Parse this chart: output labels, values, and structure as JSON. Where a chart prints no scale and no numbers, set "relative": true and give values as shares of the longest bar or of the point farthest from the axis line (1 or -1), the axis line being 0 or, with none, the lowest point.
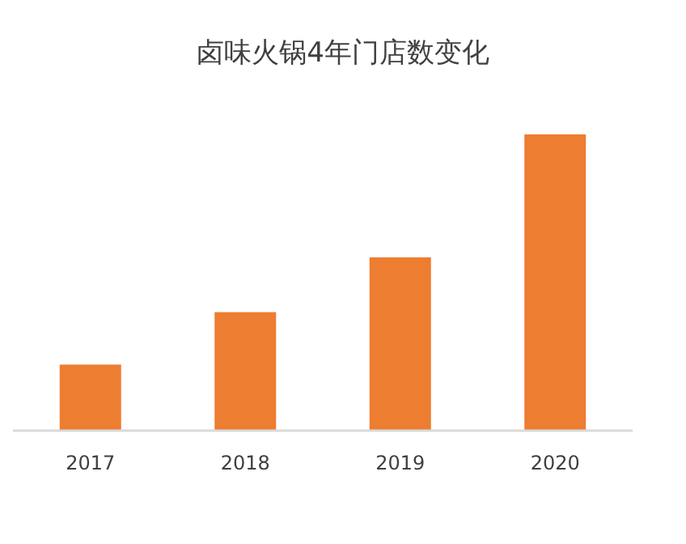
{
  "chart_data": {
    "type": "bar",
    "title": "卤味火锅4年门店数变化",
    "categories": [
      "2017",
      "2018",
      "2019",
      "2020"
    ],
    "values": [
      0.223,
      0.4,
      0.585,
      1
    ],
    "color": "#ed7d31",
    "relative": true
  }
}
